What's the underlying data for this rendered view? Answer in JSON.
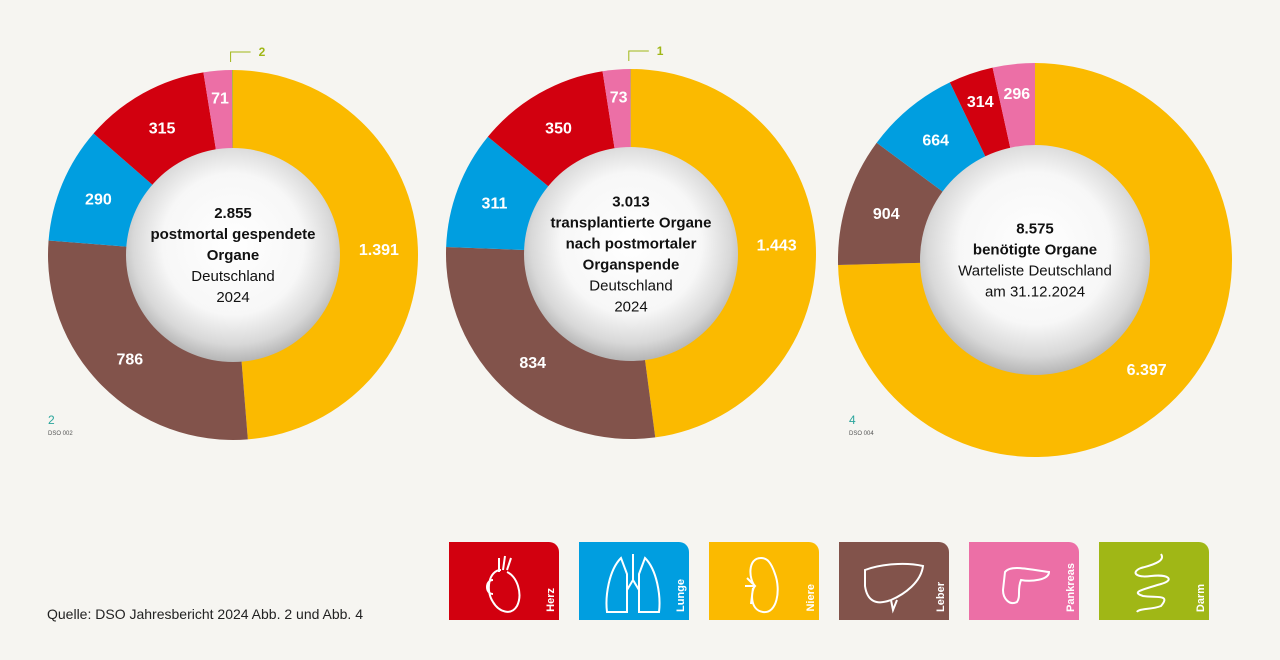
{
  "colors": {
    "Herz": "#d2000f",
    "Lunge": "#009ee0",
    "Niere": "#fbba00",
    "Leber": "#82534b",
    "Pankreas": "#ec6fa6",
    "Darm": "#a0b716"
  },
  "chart_data": [
    {
      "type": "pie",
      "donut": true,
      "categories": [
        "Niere",
        "Leber",
        "Lunge",
        "Herz",
        "Pankreas",
        "Darm"
      ],
      "values": [
        1391,
        786,
        290,
        315,
        71,
        2
      ],
      "labels": [
        "1.391",
        "786",
        "290",
        "315",
        "71",
        "2"
      ],
      "center_bold": [
        "2.855",
        "postmortal gespendete",
        "Organe"
      ],
      "center_normal": [
        "Deutschland",
        "2024"
      ],
      "fig_num": "2",
      "fig_code": "DSO 002"
    },
    {
      "type": "pie",
      "donut": true,
      "categories": [
        "Niere",
        "Leber",
        "Lunge",
        "Herz",
        "Pankreas",
        "Darm"
      ],
      "values": [
        1443,
        834,
        311,
        350,
        73,
        1
      ],
      "labels": [
        "1.443",
        "834",
        "311",
        "350",
        "73",
        "1"
      ],
      "center_bold": [
        "3.013",
        "transplantierte Organe",
        "nach postmortaler",
        "Organspende"
      ],
      "center_normal": [
        "Deutschland",
        "2024"
      ]
    },
    {
      "type": "pie",
      "donut": true,
      "categories": [
        "Niere",
        "Leber",
        "Lunge",
        "Herz",
        "Pankreas"
      ],
      "values": [
        6397,
        904,
        664,
        314,
        296
      ],
      "labels": [
        "6.397",
        "904",
        "664",
        "314",
        "296"
      ],
      "center_bold": [
        "8.575",
        "benötigte Organe"
      ],
      "center_normal": [
        "Warteliste Deutschland",
        "am 31.12.2024"
      ],
      "fig_num": "4",
      "fig_code": "DSO 004"
    }
  ],
  "legend": [
    {
      "label": "Herz",
      "icon": "heart-icon"
    },
    {
      "label": "Lunge",
      "icon": "lungs-icon"
    },
    {
      "label": "Niere",
      "icon": "kidney-icon"
    },
    {
      "label": "Leber",
      "icon": "liver-icon"
    },
    {
      "label": "Pankreas",
      "icon": "pancreas-icon"
    },
    {
      "label": "Darm",
      "icon": "intestine-icon"
    }
  ],
  "source": "Quelle: DSO Jahresbericht 2024 Abb. 2 und Abb. 4"
}
